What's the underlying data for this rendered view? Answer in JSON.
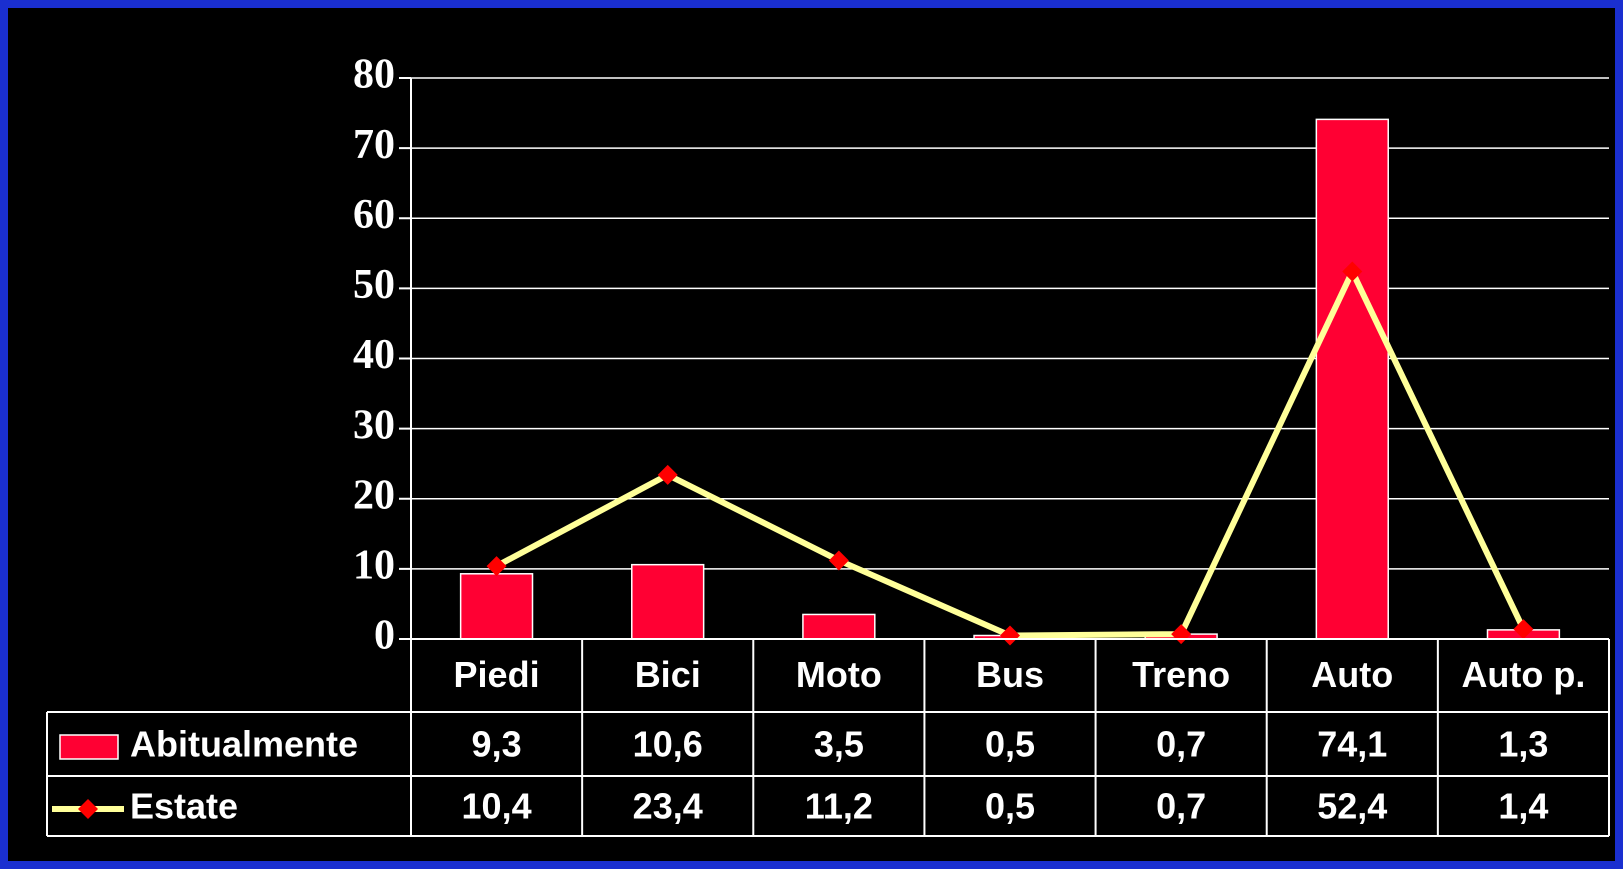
{
  "chart_data": {
    "type": "bar",
    "categories": [
      "Piedi",
      "Bici",
      "Moto",
      "Bus",
      "Treno",
      "Auto",
      "Auto p."
    ],
    "series": [
      {
        "name": "Abitualmente",
        "type": "bar",
        "color": "#ff0033",
        "values": [
          9.3,
          10.6,
          3.5,
          0.5,
          0.7,
          74.1,
          1.3
        ],
        "value_labels": [
          "9,3",
          "10,6",
          "3,5",
          "0,5",
          "0,7",
          "74,1",
          "1,3"
        ]
      },
      {
        "name": "Estate",
        "type": "line",
        "color": "#ffff99",
        "marker_color": "#ff0000",
        "values": [
          10.4,
          23.4,
          11.2,
          0.5,
          0.7,
          52.4,
          1.4
        ],
        "value_labels": [
          "10,4",
          "23,4",
          "11,2",
          "0,5",
          "0,7",
          "52,4",
          "1,4"
        ]
      }
    ],
    "ylim": [
      0,
      80
    ],
    "yticks": [
      0,
      10,
      20,
      30,
      40,
      50,
      60,
      70,
      80
    ],
    "grid": true,
    "data_table": true
  }
}
